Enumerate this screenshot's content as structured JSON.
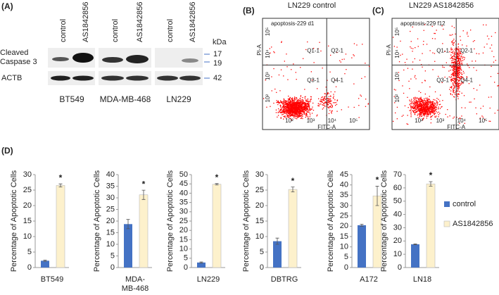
{
  "panel_a": {
    "label": "(A)",
    "lanes": [
      "control",
      "AS1842856",
      "control",
      "AS1842856",
      "control",
      "AS1842856"
    ],
    "kda": "kDa",
    "row_labels": [
      [
        "Cleaved",
        "Caspase 3"
      ],
      [
        "ACTB"
      ]
    ],
    "markers": [
      "17",
      "19",
      "42"
    ],
    "cell_lines": [
      "BT549",
      "MDA-MB-468",
      "LN229"
    ]
  },
  "panel_b": {
    "label": "(B)",
    "title": "LN229 control",
    "plot_title": "apoptosis-229 d1",
    "quadrants": [
      "Q1-1",
      "Q2-1",
      "Q3-1",
      "Q4-1"
    ],
    "xlabel": "FITC-A",
    "ylabel": "PI-A",
    "xticks": [
      "10²",
      "10³",
      "10⁴",
      "10⁵"
    ],
    "yticks": [
      "10²",
      "10³",
      "10⁴",
      "10⁵"
    ]
  },
  "panel_c": {
    "label": "(C)",
    "title": "LN229 AS1842856",
    "plot_title": "apoptosis-229 f12",
    "quadrants": [
      "Q1-1",
      "Q2-1",
      "Q3-1",
      "Q4-1"
    ],
    "xlabel": "FITC-A",
    "ylabel": "PI-A",
    "xticks": [
      "10²",
      "10³",
      "10⁴",
      "10⁵"
    ],
    "yticks": [
      "10²",
      "10³",
      "10⁴",
      "10⁵"
    ]
  },
  "panel_d": {
    "label": "(D)"
  },
  "legend": [
    {
      "name": "control",
      "color": "#4472c4"
    },
    {
      "name": "AS1842856",
      "color": "#fdf1cc"
    }
  ],
  "chart_data": [
    {
      "type": "bar",
      "ylabel": "Percentage of Apoptotic Cells",
      "xlabel": [
        "BT549"
      ],
      "values": [
        2.2,
        26.5
      ],
      "errors": [
        0.2,
        0.5
      ],
      "annotation": "*",
      "ylim": [
        0,
        30
      ],
      "yticks": [
        0,
        5,
        10,
        15,
        20,
        25,
        30
      ]
    },
    {
      "type": "bar",
      "ylabel": "Percentage of Apoptotic Cells",
      "xlabel": [
        "MDA-",
        "MB-468"
      ],
      "values": [
        18.7,
        31.3
      ],
      "errors": [
        2,
        2
      ],
      "annotation": "*",
      "ylim": [
        0,
        40
      ],
      "yticks": [
        0,
        5,
        10,
        15,
        20,
        25,
        30,
        35,
        40
      ]
    },
    {
      "type": "bar",
      "ylabel": "Percentage of Apoptotic Cells",
      "xlabel": [
        "LN229"
      ],
      "values": [
        2.7,
        44.8
      ],
      "errors": [
        0.3,
        0.4
      ],
      "annotation": "*",
      "ylim": [
        0,
        50
      ],
      "yticks": [
        0,
        5,
        10,
        15,
        20,
        25,
        30,
        35,
        40,
        45,
        50
      ]
    },
    {
      "type": "bar",
      "ylabel": "Percentage of Apoptotic Cells",
      "xlabel": [
        "DBTRG"
      ],
      "values": [
        8.5,
        25.2
      ],
      "errors": [
        1,
        0.8
      ],
      "annotation": "*",
      "ylim": [
        0,
        30
      ],
      "yticks": [
        0,
        5,
        10,
        15,
        20,
        25,
        30
      ]
    },
    {
      "type": "bar",
      "ylabel": "Percentage of Apoptotic Cells",
      "xlabel": [
        "A172"
      ],
      "values": [
        20.5,
        34.7
      ],
      "errors": [
        0.5,
        4.7
      ],
      "annotation": "*",
      "ylim": [
        0,
        45
      ],
      "yticks": [
        0,
        5,
        10,
        15,
        20,
        25,
        30,
        35,
        40,
        45
      ]
    },
    {
      "type": "bar",
      "ylabel": "Percentage of Apoptotic Cells",
      "xlabel": [
        "LN18"
      ],
      "values": [
        17.5,
        63
      ],
      "errors": [
        0.3,
        1.7
      ],
      "annotation": "*",
      "ylim": [
        0,
        70
      ],
      "yticks": [
        0,
        10,
        20,
        30,
        40,
        50,
        60,
        70
      ]
    }
  ]
}
